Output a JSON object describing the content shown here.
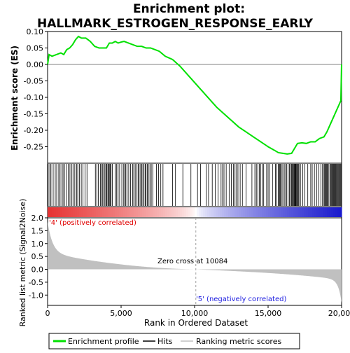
{
  "chart_data": {
    "type": "line",
    "title_line1": "Enrichment plot:",
    "title_line2": "HALLMARK_ESTROGEN_RESPONSE_EARLY",
    "es_ylabel": "Enrichment score (ES)",
    "metric_ylabel": "Ranked list metric (Signal2Noise)",
    "xlabel": "Rank in Ordered Dataset",
    "x_range": [
      0,
      20000
    ],
    "es_range": [
      -0.3,
      0.1
    ],
    "metric_range": [
      -1.4,
      2.0
    ],
    "x_ticks": [
      0,
      5000,
      10000,
      15000,
      20000
    ],
    "x_tick_labels": [
      "0",
      "5,000",
      "10,000",
      "15,000",
      "20,000"
    ],
    "es_ticks": [
      0.1,
      0.05,
      0.0,
      -0.05,
      -0.1,
      -0.15,
      -0.2,
      -0.25
    ],
    "es_tick_labels": [
      "0.10",
      "0.05",
      "0.00",
      "-0.05",
      "-0.10",
      "-0.15",
      "-0.20",
      "-0.25"
    ],
    "metric_ticks": [
      2.0,
      1.5,
      1.0,
      0.5,
      0.0,
      -0.5,
      -1.0
    ],
    "metric_tick_labels": [
      "2.0",
      "1.5",
      "1.0",
      "0.5",
      "0.0",
      "-0.5",
      "-1.0"
    ],
    "zero_cross_label": "Zero cross at 10084",
    "zero_cross_rank": 10084,
    "pos_label": "'4' (positively correlated)",
    "neg_label": "'5' (negatively correlated)",
    "legend": [
      "Enrichment profile",
      "Hits",
      "Ranking metric scores"
    ],
    "colors": {
      "profile": "#00e000",
      "hits": "#000000",
      "metric_fill": "#c0c0c0",
      "pos_text": "#e00000",
      "neg_text": "#2020e0"
    },
    "series": [
      {
        "name": "Enrichment profile",
        "x": [
          0,
          100,
          300,
          600,
          900,
          1100,
          1300,
          1500,
          1700,
          1900,
          2100,
          2300,
          2600,
          2900,
          3200,
          3500,
          3800,
          4000,
          4200,
          4400,
          4600,
          4800,
          5000,
          5200,
          5500,
          5800,
          6100,
          6400,
          6700,
          7000,
          7300,
          7600,
          8000,
          8500,
          9000,
          9500,
          10000,
          10500,
          11000,
          11500,
          12000,
          12500,
          13000,
          13500,
          14000,
          14500,
          15000,
          15400,
          15700,
          16000,
          16300,
          16600,
          16800,
          17000,
          17300,
          17600,
          17900,
          18200,
          18500,
          18800,
          19000,
          19200,
          19400,
          19600,
          19800,
          19950,
          20000
        ],
        "y": [
          0.0,
          0.03,
          0.025,
          0.03,
          0.035,
          0.03,
          0.045,
          0.05,
          0.06,
          0.075,
          0.085,
          0.08,
          0.08,
          0.07,
          0.055,
          0.05,
          0.05,
          0.05,
          0.065,
          0.065,
          0.07,
          0.065,
          0.068,
          0.07,
          0.065,
          0.06,
          0.055,
          0.055,
          0.05,
          0.05,
          0.045,
          0.04,
          0.025,
          0.015,
          -0.005,
          -0.03,
          -0.055,
          -0.08,
          -0.105,
          -0.13,
          -0.15,
          -0.17,
          -0.19,
          -0.205,
          -0.22,
          -0.235,
          -0.25,
          -0.26,
          -0.268,
          -0.27,
          -0.272,
          -0.27,
          -0.255,
          -0.24,
          -0.238,
          -0.24,
          -0.235,
          -0.235,
          -0.225,
          -0.22,
          -0.205,
          -0.185,
          -0.165,
          -0.145,
          -0.125,
          -0.11,
          0.0
        ]
      }
    ],
    "hits": [
      40,
      150,
      230,
      380,
      520,
      620,
      760,
      850,
      980,
      1050,
      1150,
      1280,
      1400,
      1520,
      1650,
      1730,
      1850,
      1970,
      2050,
      2160,
      2290,
      2400,
      2550,
      2680,
      3250,
      3350,
      3450,
      3600,
      3680,
      3750,
      3830,
      3900,
      3980,
      4030,
      4100,
      4150,
      4200,
      4260,
      4320,
      4400,
      4600,
      4700,
      4800,
      4900,
      5050,
      5180,
      5260,
      5320,
      5400,
      5520,
      5640,
      5780,
      5860,
      5960,
      6080,
      6160,
      6230,
      6330,
      6400,
      6480,
      6560,
      6640,
      6700,
      6780,
      6860,
      6960,
      7050,
      7150,
      7400,
      7550,
      7700,
      7850,
      8500,
      8700,
      9200,
      9750,
      10200,
      10400,
      10800,
      10950,
      11200,
      11400,
      11600,
      11800,
      11900,
      12000,
      12150,
      12350,
      12500,
      12650,
      12750,
      12850,
      12950,
      13100,
      13250,
      13500,
      13900,
      14100,
      14200,
      14300,
      14400,
      14500,
      14600,
      14700,
      14900,
      15000,
      15100,
      15300,
      15500,
      15600,
      15700,
      15750,
      15800,
      15850,
      15900,
      16000,
      16100,
      16200,
      16250,
      16350,
      16450,
      16550,
      16600,
      16650,
      16700,
      16750,
      16780,
      16820,
      16860,
      16900,
      16950,
      17000,
      17050,
      17100,
      17200,
      17350,
      17500,
      17700,
      17900,
      18000,
      18150,
      18300,
      18450,
      18600,
      18700,
      18800,
      18850,
      18900,
      18950,
      19000,
      19050,
      19100,
      19200,
      19250,
      19300,
      19350,
      19400,
      19450,
      19500,
      19550,
      19600,
      19650,
      19700,
      19750,
      19800,
      19850,
      19900,
      19950
    ]
  }
}
